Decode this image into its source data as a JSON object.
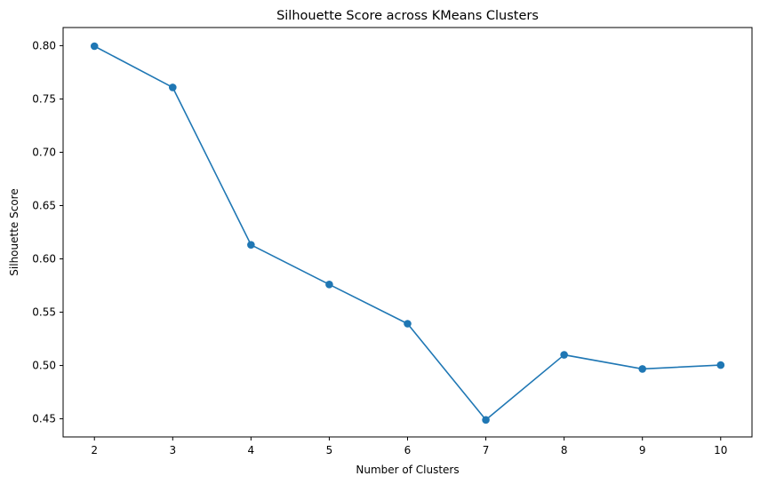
{
  "chart_data": {
    "type": "line",
    "title": "Silhouette Score across KMeans Clusters",
    "xlabel": "Number of Clusters",
    "ylabel": "Silhouette Score",
    "x": [
      2,
      3,
      4,
      5,
      6,
      7,
      8,
      9,
      10
    ],
    "series": [
      {
        "values": [
          0.7995,
          0.7608,
          0.6132,
          0.576,
          0.5392,
          0.449,
          0.51,
          0.4968,
          0.5004
        ],
        "color": "#1f77b4",
        "marker": "circle"
      }
    ],
    "xlim": [
      1.6,
      10.4
    ],
    "ylim": [
      0.433,
      0.817
    ],
    "xticks": [
      2,
      3,
      4,
      5,
      6,
      7,
      8,
      9,
      10
    ],
    "xtick_labels": [
      "2",
      "3",
      "4",
      "5",
      "6",
      "7",
      "8",
      "9",
      "10"
    ],
    "yticks": [
      0.45,
      0.5,
      0.55,
      0.6,
      0.65,
      0.7,
      0.75,
      0.8
    ],
    "ytick_labels": [
      "0.45",
      "0.50",
      "0.55",
      "0.60",
      "0.65",
      "0.70",
      "0.75",
      "0.80"
    ],
    "grid": false,
    "legend": "none"
  }
}
